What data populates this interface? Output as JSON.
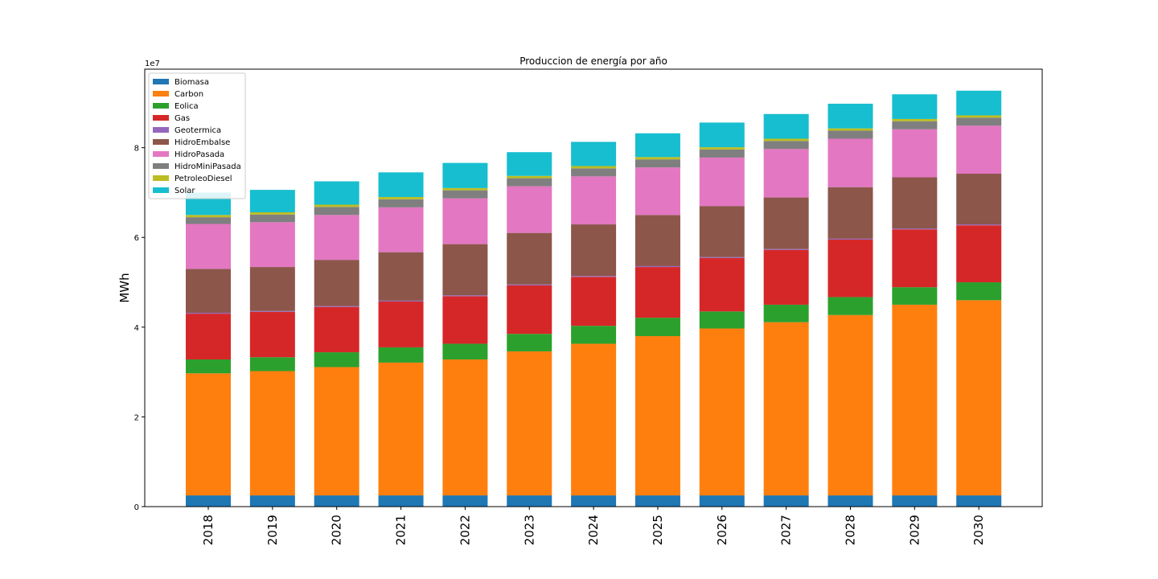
{
  "chart_data": {
    "type": "bar",
    "stacked": true,
    "title": "Produccion de energía por año",
    "xlabel": "",
    "ylabel": "MWh",
    "scale_note": "1e7",
    "categories": [
      "2018",
      "2019",
      "2020",
      "2021",
      "2022",
      "2023",
      "2024",
      "2025",
      "2026",
      "2027",
      "2028",
      "2029",
      "2030"
    ],
    "ylim": [
      0,
      97500000
    ],
    "yticks": [
      0,
      20000000,
      40000000,
      60000000,
      80000000
    ],
    "ytick_labels": [
      "0",
      "2",
      "4",
      "6",
      "8"
    ],
    "grid": false,
    "legend_position": "top-left",
    "series": [
      {
        "name": "Biomasa",
        "color": "#1f77b4",
        "values": [
          2500000,
          2500000,
          2500000,
          2500000,
          2500000,
          2500000,
          2500000,
          2500000,
          2500000,
          2500000,
          2500000,
          2500000,
          2500000
        ]
      },
      {
        "name": "Carbon",
        "color": "#ff7f0e",
        "values": [
          27200000,
          27700000,
          28600000,
          29600000,
          30300000,
          32100000,
          33800000,
          35500000,
          37200000,
          38600000,
          40200000,
          42500000,
          43500000
        ]
      },
      {
        "name": "Eolica",
        "color": "#2ca02c",
        "values": [
          3100000,
          3100000,
          3300000,
          3400000,
          3500000,
          3900000,
          4000000,
          4100000,
          3800000,
          3900000,
          4000000,
          3900000,
          4000000
        ]
      },
      {
        "name": "Gas",
        "color": "#d62728",
        "values": [
          10200000,
          10100000,
          10100000,
          10200000,
          10600000,
          10800000,
          10900000,
          11300000,
          11900000,
          12200000,
          12800000,
          12900000,
          12700000
        ]
      },
      {
        "name": "Geotermica",
        "color": "#9467bd",
        "values": [
          200000,
          200000,
          200000,
          200000,
          200000,
          200000,
          200000,
          200000,
          200000,
          200000,
          200000,
          200000,
          200000
        ]
      },
      {
        "name": "HidroEmbalse",
        "color": "#8c564b",
        "values": [
          9800000,
          9800000,
          10300000,
          10800000,
          11400000,
          11500000,
          11500000,
          11400000,
          11400000,
          11500000,
          11500000,
          11400000,
          11300000
        ]
      },
      {
        "name": "HidroPasada",
        "color": "#e377c2",
        "values": [
          10000000,
          10000000,
          10000000,
          10000000,
          10200000,
          10400000,
          10700000,
          10600000,
          10800000,
          10800000,
          10800000,
          10700000,
          10700000
        ]
      },
      {
        "name": "HidroMiniPasada",
        "color": "#7f7f7f",
        "values": [
          1500000,
          1700000,
          1800000,
          1800000,
          1800000,
          1800000,
          1800000,
          1800000,
          1800000,
          1800000,
          1800000,
          1800000,
          1800000
        ]
      },
      {
        "name": "PetroleoDiesel",
        "color": "#bcbd22",
        "values": [
          500000,
          500000,
          500000,
          500000,
          500000,
          500000,
          500000,
          500000,
          500000,
          500000,
          500000,
          500000,
          500000
        ]
      },
      {
        "name": "Solar",
        "color": "#17becf",
        "values": [
          5000000,
          5000000,
          5200000,
          5500000,
          5600000,
          5300000,
          5400000,
          5300000,
          5500000,
          5500000,
          5500000,
          5500000,
          5500000
        ]
      }
    ]
  }
}
